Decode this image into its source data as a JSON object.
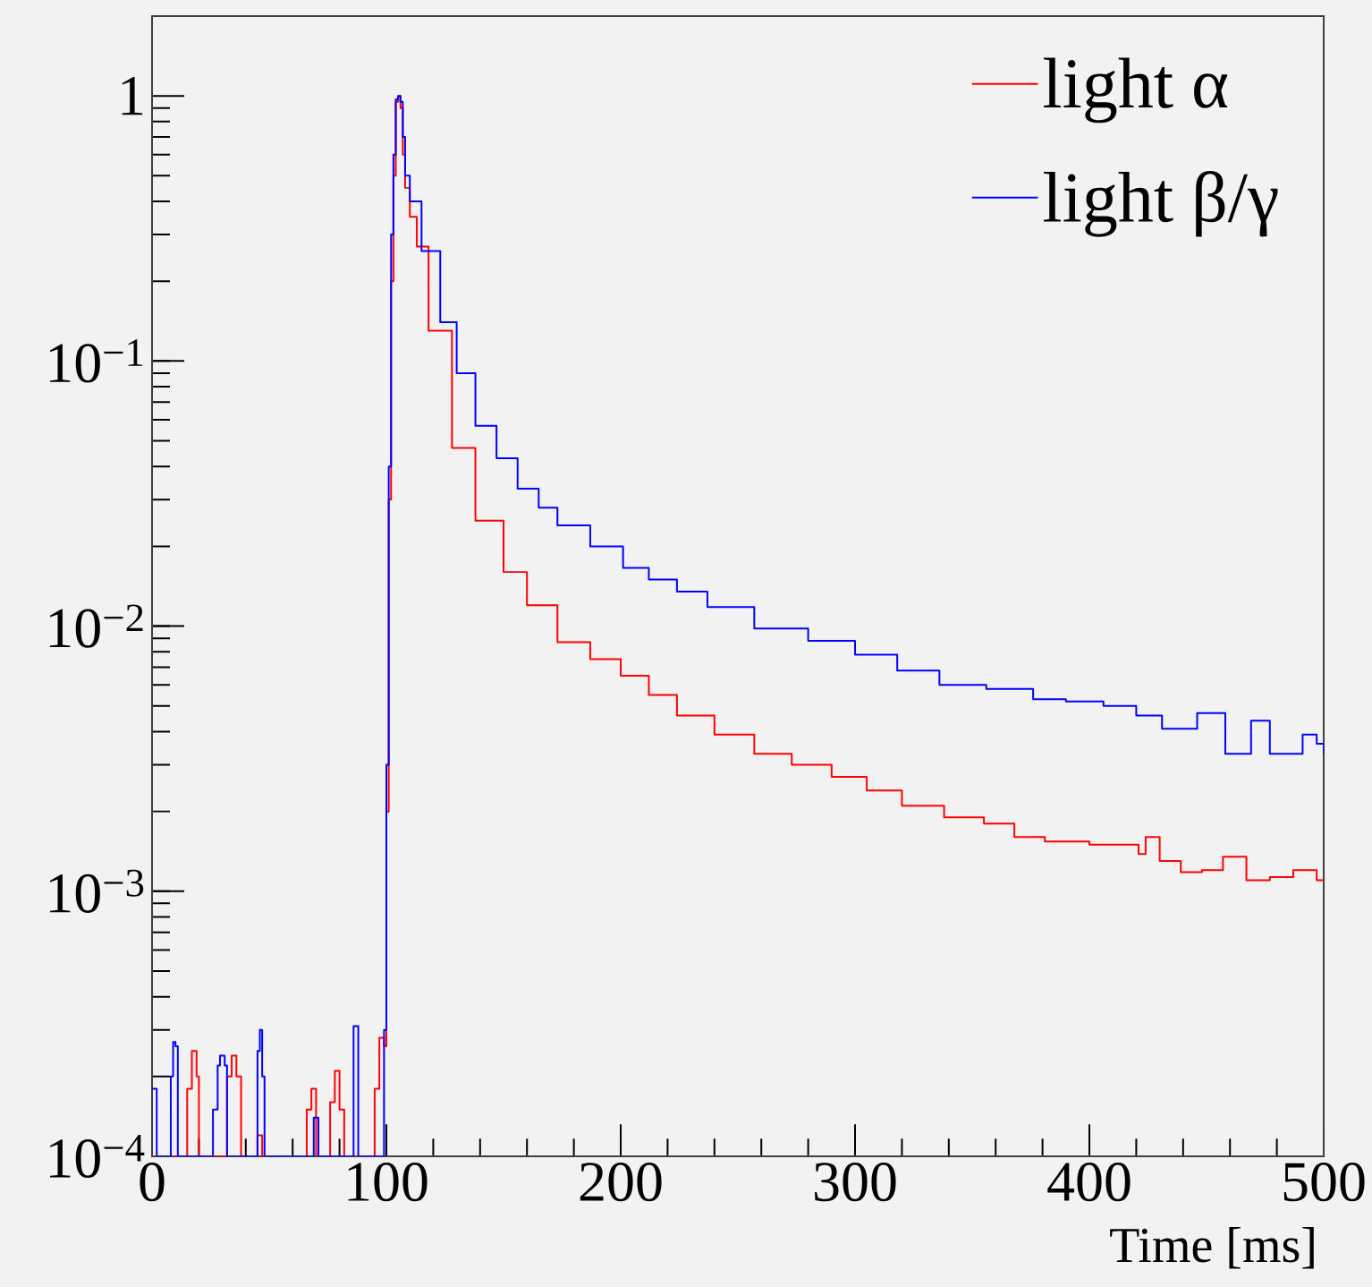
{
  "chart_data": {
    "type": "step",
    "xlabel": "Time [ms]",
    "log": "y",
    "xlim": [
      0,
      500
    ],
    "ylim": [
      0.0001,
      2
    ],
    "xticks": [
      0,
      100,
      200,
      300,
      400,
      500
    ],
    "yticks": [
      {
        "value": 0.0001,
        "label": "10$^{−4}$"
      },
      {
        "value": 0.001,
        "label": "10$^{−3}$"
      },
      {
        "value": 0.01,
        "label": "10$^{−2}$"
      },
      {
        "value": 0.1,
        "label": "10$^{−1}$"
      },
      1
    ],
    "legend": "top right",
    "series": [
      {
        "name": "light α",
        "color": "#ff0000",
        "x": [
          0,
          14,
          15,
          17,
          19,
          20,
          30,
          32,
          34,
          36,
          38,
          44,
          45,
          47,
          64,
          66,
          68,
          70,
          74,
          76,
          78,
          80,
          82,
          93,
          95,
          97,
          99,
          100,
          101,
          102,
          103,
          104,
          105,
          106,
          107,
          108,
          110,
          113,
          118,
          128,
          138,
          150,
          160,
          173,
          187,
          200,
          212,
          224,
          240,
          257,
          273,
          290,
          305,
          320,
          338,
          355,
          368,
          381,
          400,
          421,
          424,
          430,
          439,
          448,
          457,
          467,
          477,
          487,
          497,
          500
        ],
        "values": [
          0.0001,
          0.0001,
          0.00018,
          0.00025,
          0.0002,
          0.0001,
          0.0001,
          0.0002,
          0.00024,
          0.0002,
          0.0001,
          0.0001,
          0.00012,
          0.0001,
          0.0001,
          0.00015,
          0.00018,
          0.0001,
          0.0001,
          0.00016,
          0.00021,
          0.00015,
          0.0001,
          0.0001,
          0.00018,
          0.00028,
          0.00026,
          0.002,
          0.03,
          0.2,
          0.5,
          0.95,
          1.0,
          0.9,
          0.6,
          0.45,
          0.35,
          0.27,
          0.13,
          0.047,
          0.025,
          0.016,
          0.012,
          0.0087,
          0.0075,
          0.0065,
          0.0055,
          0.0046,
          0.0039,
          0.0033,
          0.003,
          0.0027,
          0.0024,
          0.0021,
          0.0019,
          0.0018,
          0.0016,
          0.00154,
          0.0015,
          0.00138,
          0.0016,
          0.0013,
          0.00118,
          0.0012,
          0.00135,
          0.0011,
          0.00113,
          0.0012,
          0.0011,
          0.0011
        ]
      },
      {
        "name": "light β/γ",
        "color": "#0000ff",
        "x": [
          0,
          1,
          2,
          7,
          8,
          9,
          10,
          11,
          25,
          26,
          28,
          29,
          31,
          32,
          44,
          45,
          46,
          47,
          48,
          68,
          69,
          70,
          71,
          85,
          86,
          87,
          88,
          89,
          97,
          99,
          100,
          101,
          102,
          103,
          104,
          105,
          106,
          107,
          108,
          110,
          115,
          123,
          130,
          138,
          147,
          156,
          165,
          173,
          187,
          201,
          212,
          224,
          237,
          257,
          280,
          300,
          318,
          336,
          356,
          376,
          390,
          406,
          420,
          431,
          446,
          458,
          469,
          477,
          491,
          497,
          500
        ],
        "values": [
          0.00018,
          0.00018,
          0.0001,
          0.0001,
          0.0002,
          0.00027,
          0.00026,
          0.0001,
          0.0001,
          0.00015,
          0.00022,
          0.00024,
          0.00022,
          0.0001,
          0.0001,
          0.00025,
          0.0003,
          0.0002,
          0.0001,
          0.0001,
          0.00014,
          0.00014,
          0.0001,
          0.0001,
          0.00031,
          0.00031,
          0.0001,
          0.0001,
          0.0001,
          0.0003,
          0.003,
          0.04,
          0.3,
          0.6,
          0.97,
          1.0,
          0.95,
          0.7,
          0.5,
          0.4,
          0.26,
          0.14,
          0.09,
          0.057,
          0.043,
          0.033,
          0.028,
          0.024,
          0.02,
          0.0166,
          0.015,
          0.0135,
          0.0118,
          0.0098,
          0.0088,
          0.0078,
          0.0068,
          0.006,
          0.0058,
          0.0053,
          0.0052,
          0.005,
          0.0046,
          0.0041,
          0.0047,
          0.0033,
          0.0044,
          0.0033,
          0.0039,
          0.0036,
          0.0033
        ]
      }
    ]
  }
}
